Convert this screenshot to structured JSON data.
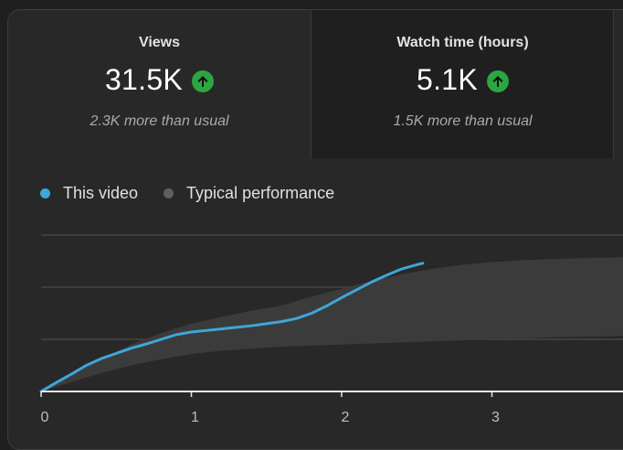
{
  "metrics": [
    {
      "label": "Views",
      "value": "31.5K",
      "note": "2.3K more than usual",
      "trend_icon": "arrow-up-icon"
    },
    {
      "label": "Watch time (hours)",
      "value": "5.1K",
      "note": "1.5K more than usual",
      "trend_icon": "arrow-up-icon"
    }
  ],
  "legend": {
    "this_video": "This video",
    "typical": "Typical performance"
  },
  "colors": {
    "this_video": "#3ea6d8",
    "typical": "#606060",
    "trend_up": "#2ba640"
  },
  "chart_data": {
    "type": "line",
    "x_ticks": [
      "0",
      "1",
      "2",
      "3"
    ],
    "xlim": [
      0,
      3.9
    ],
    "ylim": [
      0,
      3
    ],
    "grid": true,
    "series": [
      {
        "name": "This video",
        "x": [
          0,
          0.1,
          0.2,
          0.3,
          0.4,
          0.5,
          0.6,
          0.7,
          0.8,
          0.9,
          1.0,
          1.1,
          1.2,
          1.3,
          1.4,
          1.5,
          1.6,
          1.7,
          1.8,
          1.9,
          2.0,
          2.1,
          2.2,
          2.3,
          2.4,
          2.5,
          2.54
        ],
        "y": [
          0.0,
          0.17,
          0.33,
          0.5,
          0.63,
          0.73,
          0.83,
          0.91,
          1.0,
          1.09,
          1.14,
          1.17,
          1.2,
          1.23,
          1.26,
          1.3,
          1.34,
          1.4,
          1.5,
          1.64,
          1.8,
          1.95,
          2.1,
          2.23,
          2.35,
          2.43,
          2.46
        ]
      },
      {
        "name": "Typical performance",
        "x": [
          0,
          0.2,
          0.4,
          0.6,
          0.8,
          1.0,
          1.2,
          1.4,
          1.6,
          1.8,
          2.0,
          2.2,
          2.4,
          2.6,
          2.8,
          3.0,
          3.2,
          3.4,
          3.6,
          3.8,
          3.9
        ],
        "upper": [
          0.0,
          0.33,
          0.62,
          0.9,
          1.12,
          1.3,
          1.43,
          1.55,
          1.65,
          1.82,
          1.97,
          2.12,
          2.25,
          2.35,
          2.43,
          2.48,
          2.52,
          2.54,
          2.56,
          2.57,
          2.58
        ],
        "lower": [
          0.0,
          0.18,
          0.35,
          0.5,
          0.62,
          0.72,
          0.78,
          0.82,
          0.86,
          0.88,
          0.9,
          0.92,
          0.94,
          0.96,
          0.98,
          1.0,
          1.02,
          1.04,
          1.05,
          1.06,
          1.07
        ]
      }
    ]
  }
}
